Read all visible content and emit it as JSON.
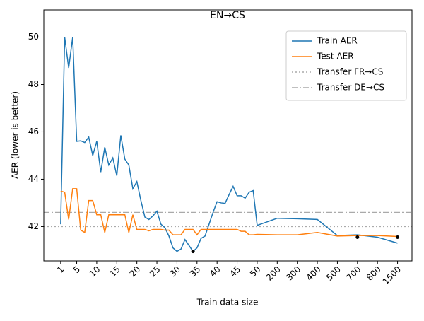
{
  "chart_data": {
    "type": "line",
    "title": "EN→CS",
    "x_label": "Train data size",
    "y_label": "AER (lower is better)",
    "x": [
      0,
      1,
      2,
      3,
      4,
      5,
      6,
      7,
      8,
      9,
      10,
      11,
      12,
      13,
      14,
      15,
      16,
      17,
      18,
      19,
      20,
      21,
      22,
      23,
      24,
      25,
      26,
      27,
      28,
      29,
      30,
      31,
      32,
      33,
      34,
      35,
      36,
      37,
      38,
      39,
      40,
      41,
      42,
      43,
      44,
      45,
      46,
      47,
      48,
      49,
      54,
      59,
      64,
      69,
      74,
      79,
      84
    ],
    "series": [
      {
        "name": "Train AER",
        "color": "#1f77b4",
        "values": [
          42.1,
          50.0,
          48.7,
          50.0,
          45.6,
          45.62,
          45.55,
          45.78,
          45.0,
          45.6,
          44.3,
          45.35,
          44.6,
          44.9,
          44.15,
          45.85,
          44.85,
          44.6,
          43.6,
          43.9,
          43.1,
          42.4,
          42.3,
          42.45,
          42.65,
          42.1,
          41.95,
          41.6,
          41.1,
          40.95,
          41.05,
          41.45,
          41.2,
          40.95,
          41.1,
          41.5,
          41.6,
          42.1,
          42.6,
          43.05,
          43.0,
          42.98,
          43.35,
          43.7,
          43.3,
          43.3,
          43.2,
          43.45,
          43.52,
          42.05,
          42.35,
          42.33,
          42.3,
          41.62,
          41.65,
          41.55,
          41.3
        ]
      },
      {
        "name": "Test AER",
        "color": "#ff7f0e",
        "values": [
          43.5,
          43.45,
          42.3,
          43.6,
          43.6,
          41.85,
          41.75,
          43.1,
          43.1,
          42.5,
          42.5,
          41.75,
          42.5,
          42.5,
          42.5,
          42.5,
          42.5,
          41.75,
          42.5,
          41.88,
          41.88,
          41.88,
          41.82,
          41.88,
          41.88,
          41.88,
          41.85,
          41.85,
          41.65,
          41.65,
          41.65,
          41.88,
          41.88,
          41.88,
          41.65,
          41.88,
          41.88,
          41.88,
          41.88,
          41.88,
          41.88,
          41.88,
          41.88,
          41.88,
          41.88,
          41.8,
          41.8,
          41.65,
          41.65,
          41.67,
          41.65,
          41.65,
          41.75,
          41.6,
          41.62,
          41.62,
          41.58
        ]
      }
    ],
    "markers": {
      "color": "#000000",
      "x": [
        33,
        74,
        84
      ],
      "values": [
        40.95,
        41.55,
        41.55
      ]
    },
    "hlines": [
      {
        "name": "Transfer FR→CS",
        "value": 42.0,
        "color": "#aaaaaa",
        "style": "dotted"
      },
      {
        "name": "Transfer DE→CS",
        "value": 42.6,
        "color": "#aaaaaa",
        "style": "dashdot"
      }
    ],
    "xlim": [
      -4.2,
      87.6
    ],
    "xticks": [
      {
        "value": 0,
        "label": "1"
      },
      {
        "value": 4,
        "label": "5"
      },
      {
        "value": 9,
        "label": "10"
      },
      {
        "value": 14,
        "label": "15"
      },
      {
        "value": 19,
        "label": "20"
      },
      {
        "value": 24,
        "label": "25"
      },
      {
        "value": 29,
        "label": "30"
      },
      {
        "value": 34,
        "label": "35"
      },
      {
        "value": 39,
        "label": "40"
      },
      {
        "value": 44,
        "label": "45"
      },
      {
        "value": 49,
        "label": "50"
      },
      {
        "value": 54,
        "label": "200"
      },
      {
        "value": 59,
        "label": "300"
      },
      {
        "value": 64,
        "label": "400"
      },
      {
        "value": 69,
        "label": "500"
      },
      {
        "value": 74,
        "label": "700"
      },
      {
        "value": 79,
        "label": "800"
      },
      {
        "value": 84,
        "label": "1500"
      }
    ],
    "ylim": [
      40.55,
      51.15
    ],
    "yticks": [
      42,
      44,
      46,
      48,
      50
    ],
    "legend": "upper right"
  }
}
